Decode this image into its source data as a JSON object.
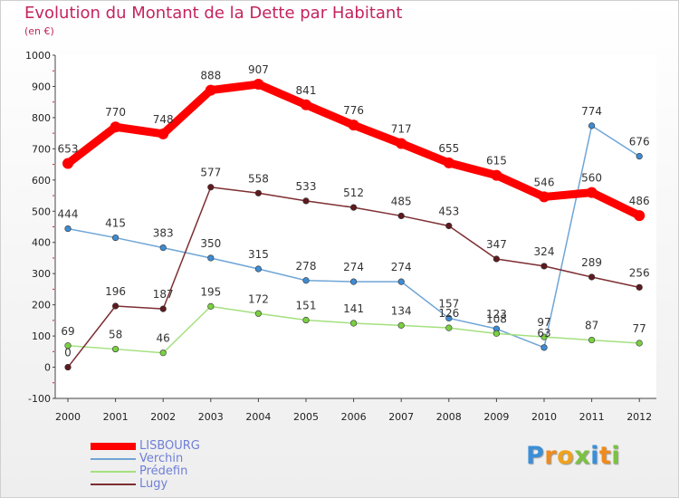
{
  "title": "Evolution du Montant de la Dette par Habitant",
  "subtitle": "(en €)",
  "logo": {
    "letters": [
      {
        "ch": "P",
        "color": "#3a8fd8"
      },
      {
        "ch": "r",
        "color": "#f08a1c"
      },
      {
        "ch": "o",
        "color": "#f0a21c"
      },
      {
        "ch": "x",
        "color": "#7cc242"
      },
      {
        "ch": "i",
        "color": "#3a8fd8"
      },
      {
        "ch": "t",
        "color": "#f08a1c"
      },
      {
        "ch": "i",
        "color": "#7cc242"
      }
    ]
  },
  "chart_data": {
    "type": "line",
    "x": [
      "2000",
      "2001",
      "2002",
      "2003",
      "2004",
      "2005",
      "2006",
      "2007",
      "2008",
      "2009",
      "2010",
      "2011",
      "2012"
    ],
    "ylim": [
      -100,
      1000
    ],
    "yticks": [
      -100,
      0,
      100,
      200,
      300,
      400,
      500,
      600,
      700,
      800,
      900,
      1000
    ],
    "grid": false,
    "legend_placement": "bottom-left",
    "series": [
      {
        "name": "LISBOURG",
        "color": "#ff0000",
        "marker": "#ff0000",
        "values": [
          653,
          770,
          748,
          888,
          907,
          841,
          776,
          717,
          655,
          615,
          546,
          560,
          486
        ]
      },
      {
        "name": "Verchin",
        "color": "#6fa5d6",
        "marker": "#3e8bd1",
        "values": [
          444,
          415,
          383,
          350,
          315,
          278,
          274,
          274,
          157,
          123,
          63,
          774,
          676
        ]
      },
      {
        "name": "Prédefin",
        "color": "#a4e07f",
        "marker": "#7ad040",
        "values": [
          69,
          58,
          46,
          195,
          172,
          151,
          141,
          134,
          126,
          108,
          97,
          87,
          77
        ]
      },
      {
        "name": "Lugy",
        "color": "#7d2e32",
        "marker": "#5e1a1f",
        "values": [
          0,
          196,
          187,
          577,
          558,
          533,
          512,
          485,
          453,
          347,
          324,
          289,
          256
        ]
      }
    ]
  }
}
